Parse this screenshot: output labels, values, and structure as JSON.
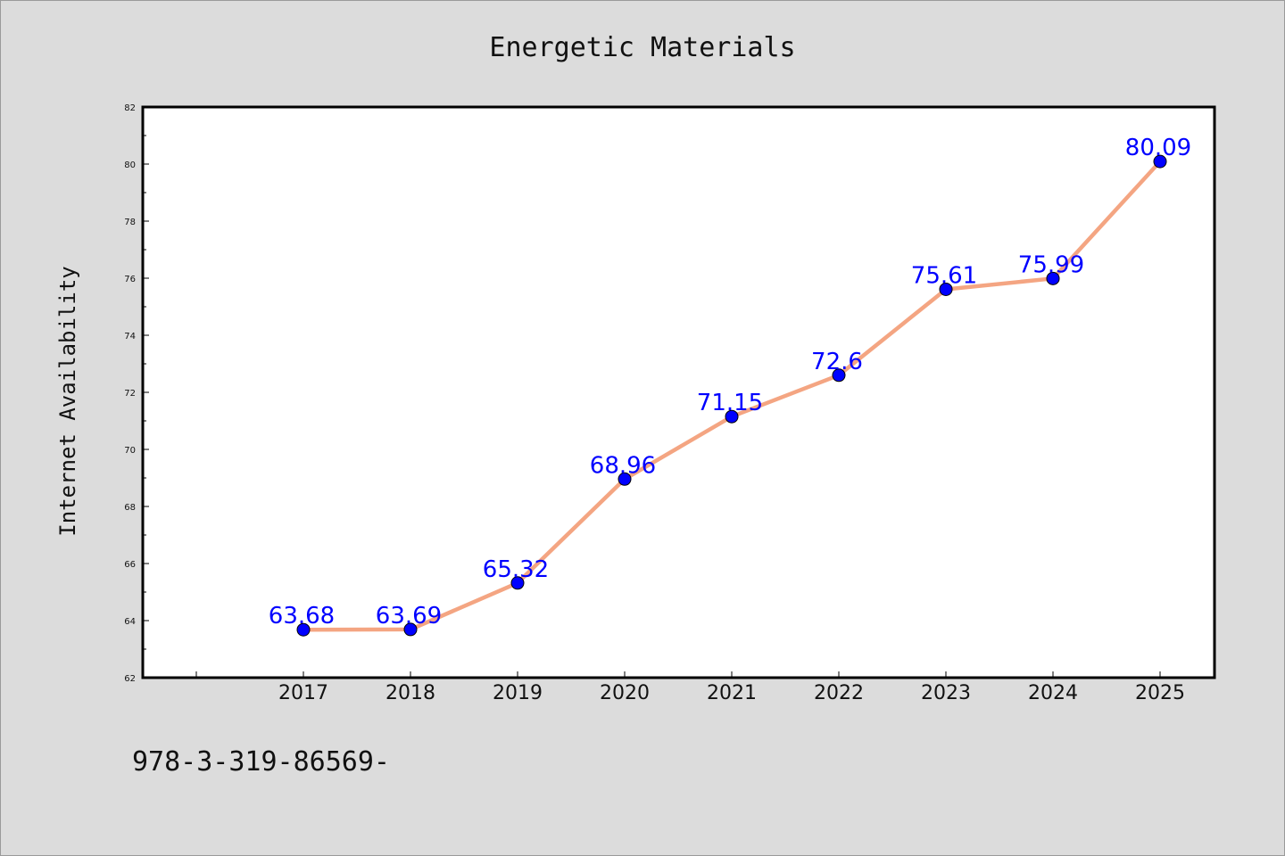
{
  "chart_data": {
    "type": "line",
    "title": "Energetic Materials",
    "xlabel": "",
    "ylabel": "Internet Availability",
    "categories": [
      "2017",
      "2018",
      "2019",
      "2020",
      "2021",
      "2022",
      "2023",
      "2024",
      "2025"
    ],
    "values": [
      63.68,
      63.69,
      65.32,
      68.96,
      71.15,
      72.6,
      75.61,
      75.99,
      80.09
    ],
    "data_labels": [
      "63.68",
      "63.69",
      "65.32",
      "68.96",
      "71.15",
      "72.6",
      "75.61",
      "75.99",
      "80.09"
    ],
    "ylim": [
      62,
      82
    ],
    "yticks": [
      62,
      64,
      66,
      68,
      70,
      72,
      74,
      76,
      78,
      80,
      82
    ],
    "grid": false,
    "legend": "none",
    "colors": {
      "line": "#f4a582",
      "marker": "#0000ff",
      "label": "#0000ff",
      "background": "#dcdcdc",
      "plot_background": "#ffffff"
    }
  },
  "footnote": "978-3-319-86569-"
}
